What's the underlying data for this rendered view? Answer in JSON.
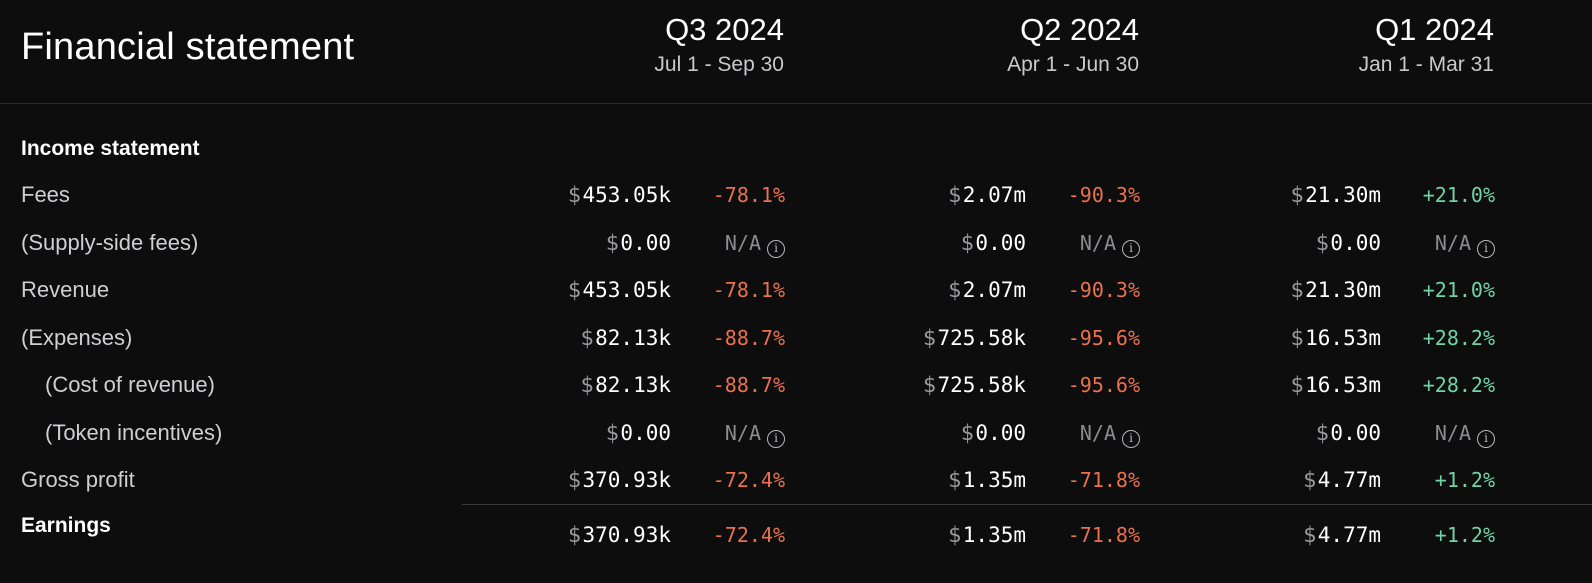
{
  "title": "Financial statement",
  "periods": [
    {
      "label": "Q3 2024",
      "range": "Jul 1 - Sep 30"
    },
    {
      "label": "Q2 2024",
      "range": "Apr 1 - Jun 30"
    },
    {
      "label": "Q1 2024",
      "range": "Jan 1 - Mar 31"
    }
  ],
  "currency_symbol": "$",
  "sections": {
    "income": "Income statement",
    "earnings": "Earnings"
  },
  "rows": [
    {
      "label": "Fees",
      "cells": [
        {
          "value": "453.05k",
          "change": "-78.1%"
        },
        {
          "value": "2.07m",
          "change": "-90.3%"
        },
        {
          "value": "21.30m",
          "change": "+21.0%"
        }
      ]
    },
    {
      "label": "(Supply-side fees)",
      "cells": [
        {
          "value": "0.00",
          "change": "N/A"
        },
        {
          "value": "0.00",
          "change": "N/A"
        },
        {
          "value": "0.00",
          "change": "N/A"
        }
      ]
    },
    {
      "label": "Revenue",
      "cells": [
        {
          "value": "453.05k",
          "change": "-78.1%"
        },
        {
          "value": "2.07m",
          "change": "-90.3%"
        },
        {
          "value": "21.30m",
          "change": "+21.0%"
        }
      ]
    },
    {
      "label": "(Expenses)",
      "cells": [
        {
          "value": "82.13k",
          "change": "-88.7%"
        },
        {
          "value": "725.58k",
          "change": "-95.6%"
        },
        {
          "value": "16.53m",
          "change": "+28.2%"
        }
      ]
    },
    {
      "label": "(Cost of revenue)",
      "cells": [
        {
          "value": "82.13k",
          "change": "-88.7%"
        },
        {
          "value": "725.58k",
          "change": "-95.6%"
        },
        {
          "value": "16.53m",
          "change": "+28.2%"
        }
      ]
    },
    {
      "label": "(Token incentives)",
      "cells": [
        {
          "value": "0.00",
          "change": "N/A"
        },
        {
          "value": "0.00",
          "change": "N/A"
        },
        {
          "value": "0.00",
          "change": "N/A"
        }
      ]
    },
    {
      "label": "Gross profit",
      "cells": [
        {
          "value": "370.93k",
          "change": "-72.4%"
        },
        {
          "value": "1.35m",
          "change": "-71.8%"
        },
        {
          "value": "4.77m",
          "change": "+1.2%"
        }
      ]
    }
  ],
  "earnings": {
    "cells": [
      {
        "value": "370.93k",
        "change": "-72.4%"
      },
      {
        "value": "1.35m",
        "change": "-71.8%"
      },
      {
        "value": "4.77m",
        "change": "+1.2%"
      }
    ]
  },
  "colors": {
    "negative": "#e8714f",
    "positive": "#6fd4a5",
    "background": "#0d0d0e"
  },
  "icons": {
    "na_info": "info-circle-icon"
  }
}
